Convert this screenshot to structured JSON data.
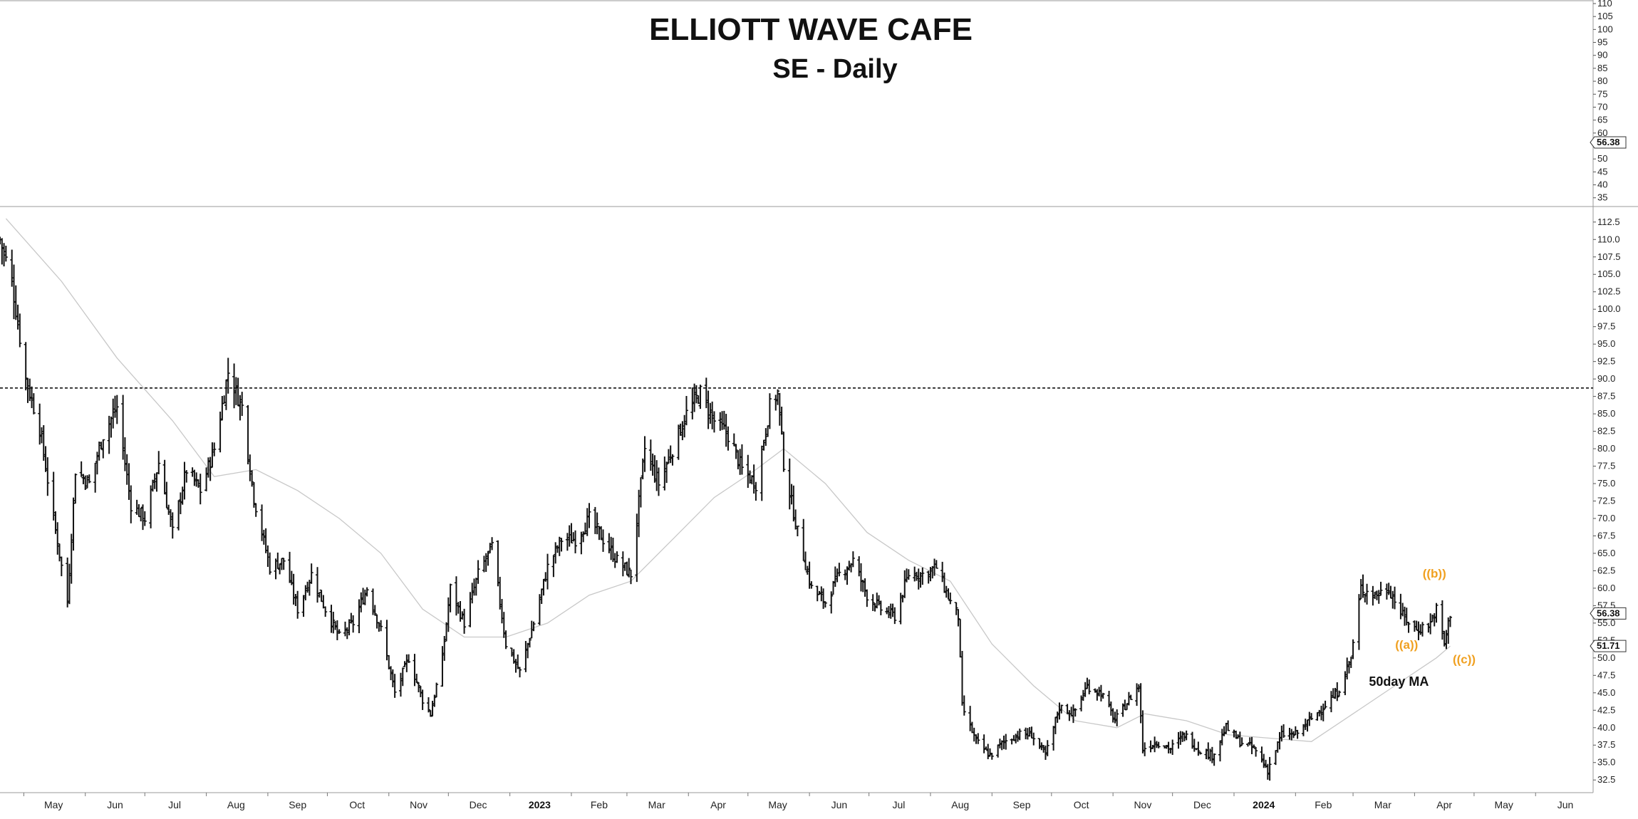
{
  "chart_data": {
    "type": "ohlc-bar",
    "title": "ELLIOTT WAVE CAFE",
    "subtitle": "SE - Daily",
    "x_axis": {
      "months": [
        "May",
        "Jun",
        "Jul",
        "Aug",
        "Sep",
        "Oct",
        "Nov",
        "Dec",
        "2023",
        "Feb",
        "Mar",
        "Apr",
        "May",
        "Jun",
        "Jul",
        "Aug",
        "Sep",
        "Oct",
        "Nov",
        "Dec",
        "2024",
        "Feb",
        "Mar",
        "Apr",
        "May",
        "Jun"
      ],
      "year_labels": [
        "2023",
        "2024"
      ],
      "range": [
        "2022-04-19",
        "2024-06-30"
      ]
    },
    "upper_panel": {
      "ylim": [
        33,
        110
      ],
      "ticks": [
        110,
        105,
        100,
        95,
        90,
        85,
        80,
        75,
        70,
        65,
        60,
        50,
        45,
        40,
        35
      ],
      "last_value_tag": "56.38"
    },
    "lower_panel": {
      "ylim": [
        31.5,
        113.5
      ],
      "ticks": [
        "112.5",
        "110.0",
        "107.5",
        "105.0",
        "102.5",
        "100.0",
        "97.5",
        "95.0",
        "92.5",
        "90.0",
        "87.5",
        "85.0",
        "82.5",
        "80.0",
        "77.5",
        "75.0",
        "72.5",
        "70.0",
        "67.5",
        "65.0",
        "62.5",
        "60.0",
        "57.5",
        "55.0",
        "52.5",
        "50.0",
        "47.5",
        "45.0",
        "42.5",
        "40.0",
        "37.5",
        "35.0",
        "32.5"
      ],
      "last_price_tag": "56.38",
      "ma_value_tag": "51.71",
      "resistance_level": 88.7,
      "price_path": [
        [
          "2022-04-19",
          110
        ],
        [
          "2022-04-25",
          104
        ],
        [
          "2022-05-02",
          90
        ],
        [
          "2022-05-09",
          83
        ],
        [
          "2022-05-16",
          70
        ],
        [
          "2022-05-23",
          58
        ],
        [
          "2022-05-27",
          77
        ],
        [
          "2022-06-03",
          75
        ],
        [
          "2022-06-10",
          82
        ],
        [
          "2022-06-17",
          86
        ],
        [
          "2022-06-24",
          72
        ],
        [
          "2022-07-01",
          70
        ],
        [
          "2022-07-08",
          78
        ],
        [
          "2022-07-15",
          68
        ],
        [
          "2022-07-22",
          77
        ],
        [
          "2022-07-29",
          74
        ],
        [
          "2022-08-05",
          80
        ],
        [
          "2022-08-12",
          91
        ],
        [
          "2022-08-19",
          86
        ],
        [
          "2022-08-25",
          73
        ],
        [
          "2022-09-02",
          63
        ],
        [
          "2022-09-09",
          64
        ],
        [
          "2022-09-16",
          57
        ],
        [
          "2022-09-23",
          62
        ],
        [
          "2022-09-30",
          57
        ],
        [
          "2022-10-07",
          53
        ],
        [
          "2022-10-14",
          55
        ],
        [
          "2022-10-21",
          60
        ],
        [
          "2022-10-28",
          54
        ],
        [
          "2022-11-04",
          45
        ],
        [
          "2022-11-11",
          50
        ],
        [
          "2022-11-18",
          44
        ],
        [
          "2022-11-22",
          42
        ],
        [
          "2022-11-28",
          50
        ],
        [
          "2022-12-02",
          60
        ],
        [
          "2022-12-09",
          55
        ],
        [
          "2022-12-16",
          62
        ],
        [
          "2022-12-23",
          66
        ],
        [
          "2022-12-30",
          52
        ],
        [
          "2023-01-06",
          48
        ],
        [
          "2023-01-13",
          55
        ],
        [
          "2023-01-20",
          63
        ],
        [
          "2023-01-27",
          67
        ],
        [
          "2023-02-03",
          67
        ],
        [
          "2023-02-10",
          70
        ],
        [
          "2023-02-17",
          67
        ],
        [
          "2023-02-24",
          64
        ],
        [
          "2023-03-03",
          62
        ],
        [
          "2023-03-10",
          80
        ],
        [
          "2023-03-17",
          75
        ],
        [
          "2023-03-24",
          80
        ],
        [
          "2023-03-31",
          85
        ],
        [
          "2023-04-07",
          88
        ],
        [
          "2023-04-14",
          84
        ],
        [
          "2023-04-21",
          82
        ],
        [
          "2023-04-28",
          77
        ],
        [
          "2023-05-05",
          75
        ],
        [
          "2023-05-12",
          86
        ],
        [
          "2023-05-16",
          88
        ],
        [
          "2023-05-19",
          78
        ],
        [
          "2023-05-26",
          68
        ],
        [
          "2023-06-02",
          60
        ],
        [
          "2023-06-09",
          58
        ],
        [
          "2023-06-16",
          62
        ],
        [
          "2023-06-23",
          64
        ],
        [
          "2023-06-30",
          59
        ],
        [
          "2023-07-07",
          57
        ],
        [
          "2023-07-14",
          56
        ],
        [
          "2023-07-21",
          62
        ],
        [
          "2023-07-28",
          62
        ],
        [
          "2023-08-04",
          63
        ],
        [
          "2023-08-11",
          58
        ],
        [
          "2023-08-15",
          56
        ],
        [
          "2023-08-17",
          43
        ],
        [
          "2023-08-24",
          38
        ],
        [
          "2023-08-31",
          36
        ],
        [
          "2023-09-07",
          38
        ],
        [
          "2023-09-14",
          39
        ],
        [
          "2023-09-21",
          39
        ],
        [
          "2023-09-28",
          36
        ],
        [
          "2023-10-05",
          43
        ],
        [
          "2023-10-12",
          42
        ],
        [
          "2023-10-19",
          46
        ],
        [
          "2023-10-26",
          45
        ],
        [
          "2023-11-02",
          41
        ],
        [
          "2023-11-09",
          44
        ],
        [
          "2023-11-14",
          46
        ],
        [
          "2023-11-16",
          37
        ],
        [
          "2023-11-23",
          38
        ],
        [
          "2023-11-30",
          37
        ],
        [
          "2023-12-07",
          39
        ],
        [
          "2023-12-14",
          37
        ],
        [
          "2023-12-21",
          36
        ],
        [
          "2023-12-28",
          40
        ],
        [
          "2024-01-04",
          38
        ],
        [
          "2024-01-11",
          37
        ],
        [
          "2024-01-18",
          34
        ],
        [
          "2024-01-25",
          39
        ],
        [
          "2024-02-01",
          39
        ],
        [
          "2024-02-08",
          41
        ],
        [
          "2024-02-15",
          43
        ],
        [
          "2024-02-22",
          45
        ],
        [
          "2024-02-29",
          50
        ],
        [
          "2024-03-05",
          60
        ],
        [
          "2024-03-12",
          59
        ],
        [
          "2024-03-19",
          60
        ],
        [
          "2024-03-26",
          56
        ],
        [
          "2024-04-02",
          54
        ],
        [
          "2024-04-09",
          55
        ],
        [
          "2024-04-12",
          57
        ],
        [
          "2024-04-16",
          52
        ],
        [
          "2024-04-19",
          56.4
        ]
      ],
      "ma_path": [
        [
          "2022-04-22",
          113
        ],
        [
          "2022-05-20",
          104
        ],
        [
          "2022-06-17",
          93
        ],
        [
          "2022-07-15",
          84
        ],
        [
          "2022-08-05",
          76
        ],
        [
          "2022-08-26",
          77
        ],
        [
          "2022-09-16",
          74
        ],
        [
          "2022-10-07",
          70
        ],
        [
          "2022-10-28",
          65
        ],
        [
          "2022-11-18",
          57
        ],
        [
          "2022-12-09",
          53
        ],
        [
          "2022-12-30",
          53
        ],
        [
          "2023-01-20",
          55
        ],
        [
          "2023-02-10",
          59
        ],
        [
          "2023-03-03",
          61
        ],
        [
          "2023-03-24",
          67
        ],
        [
          "2023-04-14",
          73
        ],
        [
          "2023-05-05",
          77
        ],
        [
          "2023-05-19",
          80
        ],
        [
          "2023-06-09",
          75
        ],
        [
          "2023-06-30",
          68
        ],
        [
          "2023-07-21",
          64
        ],
        [
          "2023-08-11",
          61
        ],
        [
          "2023-09-01",
          52
        ],
        [
          "2023-09-22",
          46
        ],
        [
          "2023-10-13",
          41
        ],
        [
          "2023-11-03",
          40
        ],
        [
          "2023-11-17",
          42
        ],
        [
          "2023-12-08",
          41
        ],
        [
          "2023-12-29",
          39
        ],
        [
          "2024-01-19",
          38.5
        ],
        [
          "2024-02-09",
          38
        ],
        [
          "2024-03-01",
          42
        ],
        [
          "2024-03-22",
          46
        ],
        [
          "2024-04-12",
          50
        ],
        [
          "2024-04-19",
          51.7
        ]
      ]
    },
    "annotations": [
      {
        "text": "((b))",
        "date": "2024-04-11",
        "value": 61.5
      },
      {
        "text": "((a))",
        "date": "2024-03-28",
        "value": 51.3
      },
      {
        "text": "((c))",
        "date": "2024-04-26",
        "value": 49.2
      }
    ],
    "ma_label": "50day MA",
    "colors": {
      "bars": "#111111",
      "ma_line": "#c8c8c8",
      "wave_labels": "#f0a020",
      "resistance": "#111111"
    }
  }
}
